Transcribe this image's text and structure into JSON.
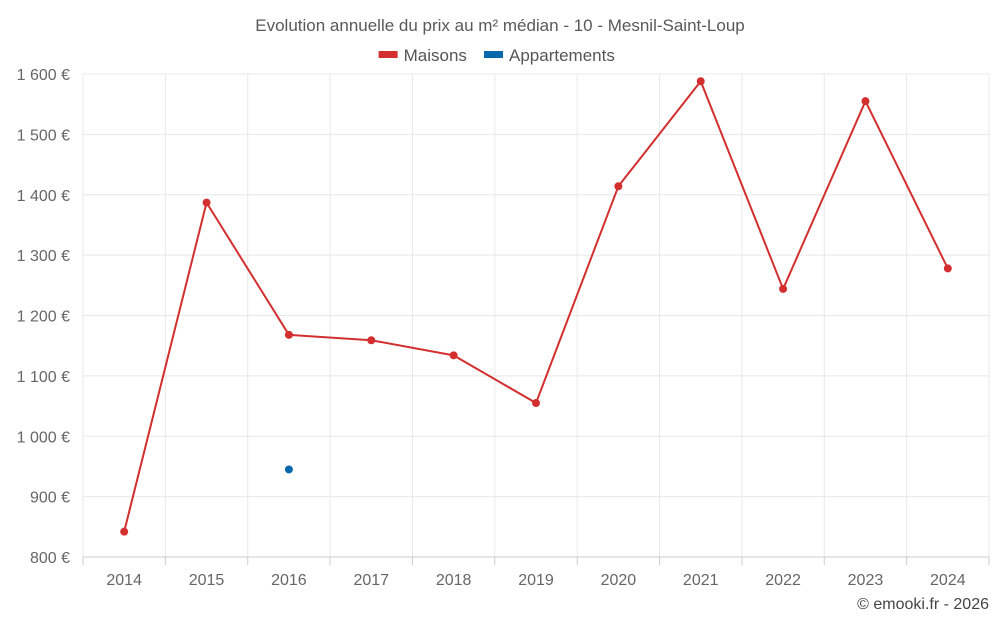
{
  "chart_data": {
    "type": "line",
    "title": "Evolution annuelle du prix au m² médian - 10 - Mesnil-Saint-Loup",
    "categories": [
      "2014",
      "2015",
      "2016",
      "2017",
      "2018",
      "2019",
      "2020",
      "2021",
      "2022",
      "2023",
      "2024"
    ],
    "series": [
      {
        "name": "Maisons",
        "color": "#d32f2f",
        "values": [
          842,
          1387,
          1168,
          1159,
          1134,
          1055,
          1414,
          1588,
          1244,
          1555,
          1278
        ]
      },
      {
        "name": "Appartements",
        "color": "#0868ac",
        "values": [
          null,
          null,
          945,
          null,
          null,
          null,
          null,
          null,
          null,
          null,
          null
        ]
      }
    ],
    "ylim": [
      800,
      1600
    ],
    "yticks": [
      800,
      900,
      1000,
      1100,
      1200,
      1300,
      1400,
      1500,
      1600
    ],
    "ytick_labels": [
      "800 €",
      "900 €",
      "1 000 €",
      "1 100 €",
      "1 200 €",
      "1 300 €",
      "1 400 €",
      "1 500 €",
      "1 600 €"
    ],
    "xlabel": "",
    "ylabel": "",
    "grid": true,
    "legend_position": "top-center"
  },
  "credit": "© emooki.fr - 2026"
}
